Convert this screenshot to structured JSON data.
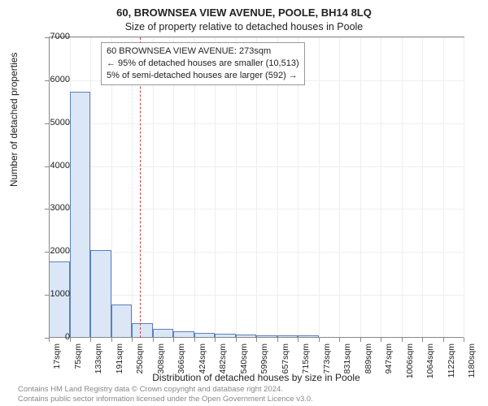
{
  "title": "60, BROWNSEA VIEW AVENUE, POOLE, BH14 8LQ",
  "subtitle": "Size of property relative to detached houses in Poole",
  "ylabel": "Number of detached properties",
  "xlabel": "Distribution of detached houses by size in Poole",
  "footer_line1": "Contains HM Land Registry data © Crown copyright and database right 2024.",
  "footer_line2": "Contains public sector information licensed under the Open Government Licence v3.0.",
  "chart": {
    "type": "histogram",
    "background_color": "#ffffff",
    "grid_color": "#eeeeee",
    "axis_color": "#888888",
    "bar_fill": "#dbe7f6",
    "bar_border": "#5b7fbd",
    "ref_color": "#d04040",
    "ymax": 7000,
    "ytick_step": 1000,
    "y_ticks": [
      0,
      1000,
      2000,
      3000,
      4000,
      5000,
      6000,
      7000
    ],
    "x_ticks": [
      "17sqm",
      "75sqm",
      "133sqm",
      "191sqm",
      "250sqm",
      "308sqm",
      "366sqm",
      "424sqm",
      "482sqm",
      "540sqm",
      "599sqm",
      "657sqm",
      "715sqm",
      "773sqm",
      "831sqm",
      "889sqm",
      "947sqm",
      "1006sqm",
      "1064sqm",
      "1122sqm",
      "1180sqm"
    ],
    "bin_values": [
      1780,
      5740,
      2040,
      780,
      340,
      200,
      150,
      110,
      90,
      70,
      60,
      60,
      50,
      0,
      0,
      0,
      0,
      0,
      0,
      0
    ],
    "ref_value_sqm": 273,
    "x_min_sqm": 17,
    "x_max_sqm": 1180,
    "info_box": {
      "line1": "60 BROWNSEA VIEW AVENUE: 273sqm",
      "line2": "← 95% of detached houses are smaller (10,513)",
      "line3": "5% of semi-detached houses are larger (592) →"
    },
    "title_fontsize": 13,
    "subtitle_fontsize": 12.5,
    "label_fontsize": 12,
    "tick_fontsize": 11,
    "info_fontsize": 11,
    "footer_fontsize": 9.5
  }
}
